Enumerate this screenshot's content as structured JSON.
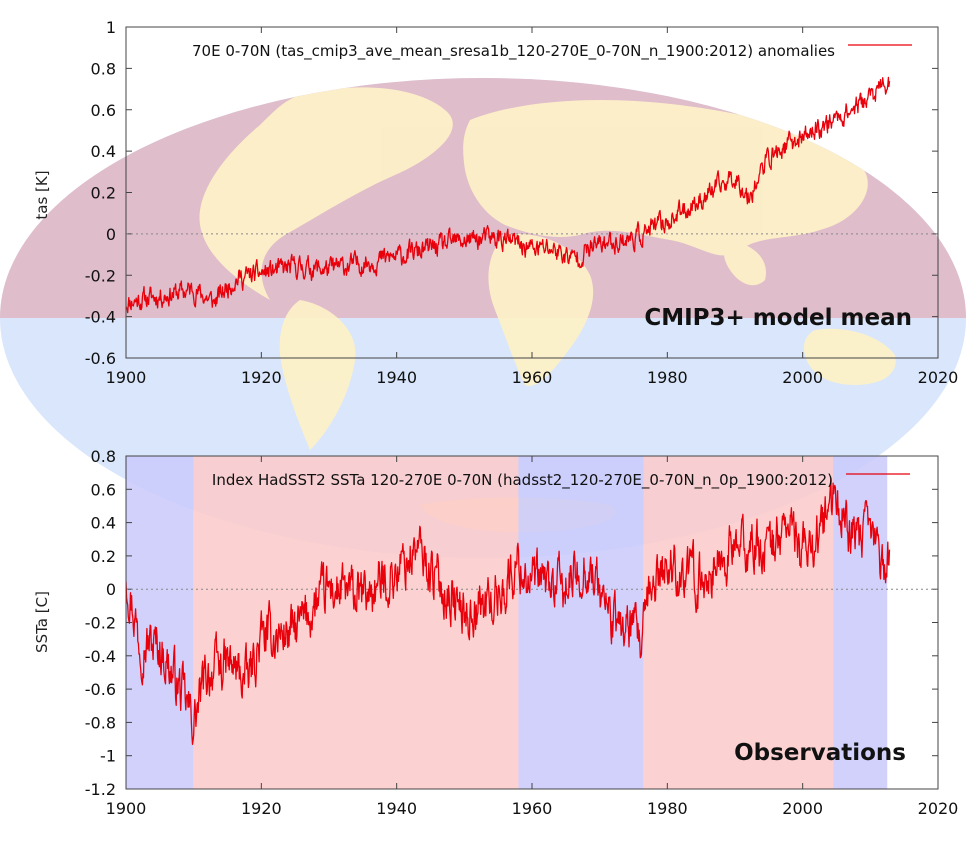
{
  "figure": {
    "background": {
      "land_color": "#fdf2c8",
      "ocean_color": "#d9e6fb",
      "band_color": "#dfb5c2"
    },
    "series_color": "#e8000b",
    "warm_phase_color": "#fbc9c9",
    "cool_phase_color": "#c9c9fb"
  },
  "chart_data": [
    {
      "type": "line",
      "title": "70E 0-70N (tas_cmip3_ave_mean_sresa1b_120-270E_0-70N_n_1900:2012) anomalies",
      "annotation": "CMIP3+ model mean",
      "xlabel": "",
      "ylabel": "tas [K]",
      "xlim": [
        1900,
        2020
      ],
      "ylim": [
        -0.6,
        1.0
      ],
      "xticks": [
        "1900",
        "1920",
        "1940",
        "1960",
        "1980",
        "2000",
        "2020"
      ],
      "yticks": [
        "-0.6",
        "-0.4",
        "-0.2",
        "0",
        "0.2",
        "0.4",
        "0.6",
        "0.8",
        "1"
      ],
      "grid": false,
      "zero_line": true,
      "legend_position": "top-right",
      "noise_amplitude": 0.04,
      "trend": [
        {
          "x": 1900,
          "y": -0.33
        },
        {
          "x": 1905,
          "y": -0.3
        },
        {
          "x": 1910,
          "y": -0.27
        },
        {
          "x": 1913,
          "y": -0.33
        },
        {
          "x": 1916,
          "y": -0.22
        },
        {
          "x": 1920,
          "y": -0.19
        },
        {
          "x": 1925,
          "y": -0.16
        },
        {
          "x": 1930,
          "y": -0.17
        },
        {
          "x": 1935,
          "y": -0.14
        },
        {
          "x": 1940,
          "y": -0.11
        },
        {
          "x": 1945,
          "y": -0.07
        },
        {
          "x": 1950,
          "y": -0.03
        },
        {
          "x": 1955,
          "y": -0.02
        },
        {
          "x": 1960,
          "y": -0.07
        },
        {
          "x": 1963,
          "y": -0.07
        },
        {
          "x": 1966,
          "y": -0.12
        },
        {
          "x": 1970,
          "y": -0.05
        },
        {
          "x": 1975,
          "y": -0.02
        },
        {
          "x": 1980,
          "y": 0.06
        },
        {
          "x": 1985,
          "y": 0.17
        },
        {
          "x": 1990,
          "y": 0.28
        },
        {
          "x": 1992,
          "y": 0.18
        },
        {
          "x": 1995,
          "y": 0.37
        },
        {
          "x": 2000,
          "y": 0.47
        },
        {
          "x": 2005,
          "y": 0.56
        },
        {
          "x": 2010,
          "y": 0.66
        },
        {
          "x": 2012,
          "y": 0.72
        }
      ]
    },
    {
      "type": "line",
      "title": "Index HadSST2 SSTa 120-270E 0-70N (hadsst2_120-270E_0-70N_n_0p_1900:2012)",
      "annotation": "Observations",
      "xlabel": "",
      "ylabel": "SSTa [C]",
      "xlim": [
        1900,
        2020
      ],
      "ylim": [
        -1.2,
        0.8
      ],
      "xticks": [
        "1900",
        "1920",
        "1940",
        "1960",
        "1980",
        "2000",
        "2020"
      ],
      "yticks": [
        "-1.2",
        "-1",
        "-0.8",
        "-0.6",
        "-0.4",
        "-0.2",
        "0",
        "0.2",
        "0.4",
        "0.6",
        "0.8"
      ],
      "grid": false,
      "zero_line": true,
      "legend_position": "top-right",
      "noise_amplitude": 0.12,
      "phase_bands": [
        {
          "start": 1900,
          "end": 1910,
          "phase": "cool"
        },
        {
          "start": 1910,
          "end": 1958,
          "phase": "warm"
        },
        {
          "start": 1958,
          "end": 1976.5,
          "phase": "cool"
        },
        {
          "start": 1976.5,
          "end": 2004.5,
          "phase": "warm"
        },
        {
          "start": 2004.5,
          "end": 2012.5,
          "phase": "cool"
        }
      ],
      "trend": [
        {
          "x": 1900,
          "y": 0.1
        },
        {
          "x": 1902,
          "y": -0.3
        },
        {
          "x": 1905,
          "y": -0.35
        },
        {
          "x": 1908,
          "y": -0.6
        },
        {
          "x": 1910,
          "y": -0.8
        },
        {
          "x": 1912,
          "y": -0.5
        },
        {
          "x": 1915,
          "y": -0.45
        },
        {
          "x": 1918,
          "y": -0.55
        },
        {
          "x": 1920,
          "y": -0.3
        },
        {
          "x": 1925,
          "y": -0.25
        },
        {
          "x": 1930,
          "y": 0.0
        },
        {
          "x": 1935,
          "y": -0.05
        },
        {
          "x": 1940,
          "y": 0.1
        },
        {
          "x": 1943,
          "y": 0.25
        },
        {
          "x": 1946,
          "y": 0.05
        },
        {
          "x": 1950,
          "y": -0.15
        },
        {
          "x": 1955,
          "y": -0.05
        },
        {
          "x": 1958,
          "y": 0.15
        },
        {
          "x": 1960,
          "y": 0.05
        },
        {
          "x": 1965,
          "y": 0.0
        },
        {
          "x": 1968,
          "y": 0.15
        },
        {
          "x": 1970,
          "y": 0.0
        },
        {
          "x": 1972,
          "y": -0.2
        },
        {
          "x": 1975,
          "y": -0.25
        },
        {
          "x": 1976,
          "y": -0.35
        },
        {
          "x": 1978,
          "y": 0.05
        },
        {
          "x": 1980,
          "y": 0.15
        },
        {
          "x": 1985,
          "y": 0.05
        },
        {
          "x": 1990,
          "y": 0.25
        },
        {
          "x": 1995,
          "y": 0.25
        },
        {
          "x": 1998,
          "y": 0.4
        },
        {
          "x": 2000,
          "y": 0.2
        },
        {
          "x": 2004,
          "y": 0.45
        },
        {
          "x": 2005,
          "y": 0.55
        },
        {
          "x": 2008,
          "y": 0.25
        },
        {
          "x": 2010,
          "y": 0.35
        },
        {
          "x": 2012,
          "y": 0.15
        }
      ]
    }
  ]
}
